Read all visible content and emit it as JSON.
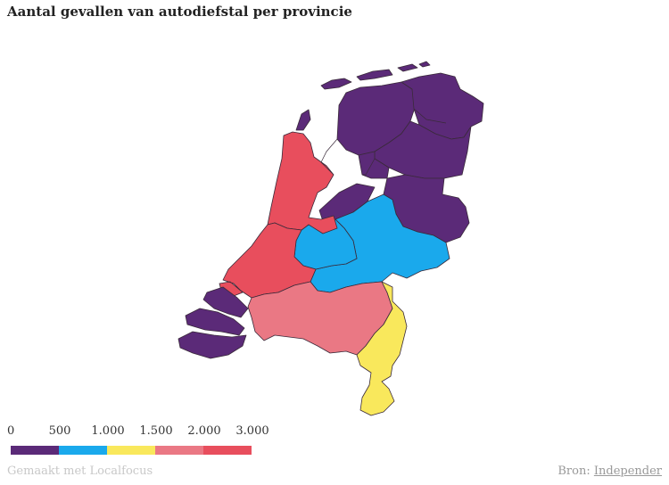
{
  "title": "Aantal gevallen van autodiefstal per provincie",
  "legend": {
    "ticks": [
      "0",
      "500",
      "1.000",
      "1.500",
      "2.000",
      "3.000"
    ],
    "colors": [
      "#5b2a78",
      "#1aa9ec",
      "#f9e85c",
      "#ea7884",
      "#e84e5d"
    ]
  },
  "provinces": {
    "groningen": "#5b2a78",
    "friesland": "#5b2a78",
    "drenthe": "#5b2a78",
    "overijssel": "#5b2a78",
    "flevoland": "#5b2a78",
    "gelderland": "#1aa9ec",
    "utrecht": "#1aa9ec",
    "noord_holland": "#e84e5d",
    "zuid_holland": "#e84e5d",
    "zeeland": "#5b2a78",
    "noord_brabant": "#ea7884",
    "limburg": "#f9e85c"
  },
  "footer": {
    "credit": "Gemaakt met Localfocus",
    "source_prefix": "Bron: ",
    "source_link": "Independer"
  }
}
